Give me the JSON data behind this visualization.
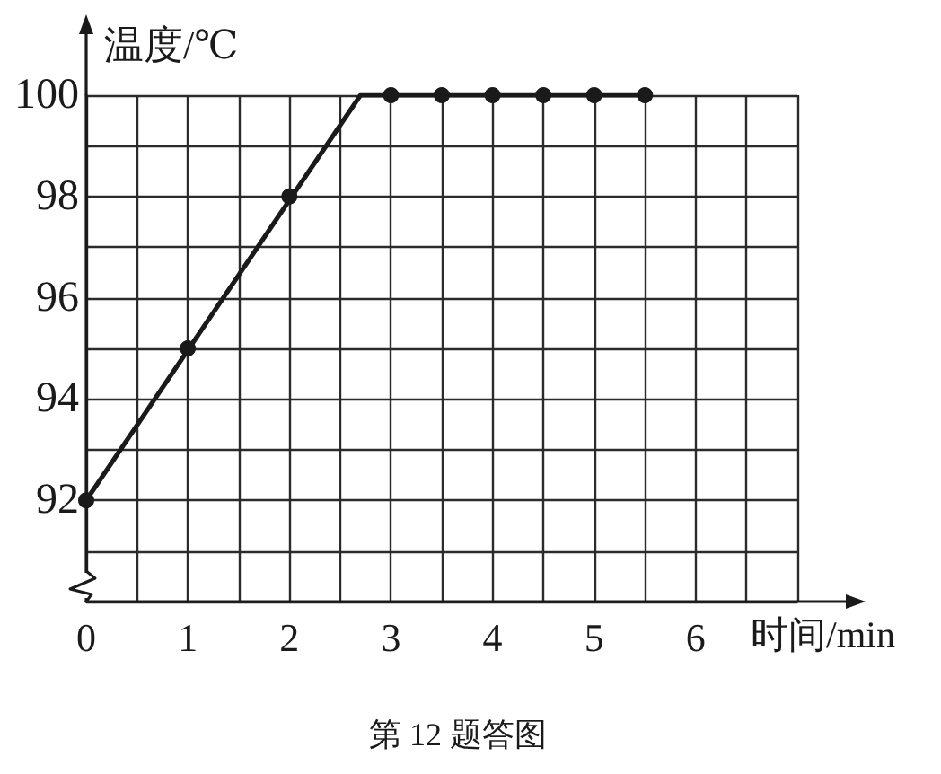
{
  "chart_data": {
    "type": "line",
    "xlabel": "时间/min",
    "ylabel": "温度/℃",
    "annotations": [
      "第 12 题答图"
    ],
    "xlim": [
      0,
      7
    ],
    "xticks": [
      0,
      {
        "value": 0.5,
        "label": null
      },
      1,
      {
        "value": 1.5,
        "label": null
      },
      2,
      {
        "value": 2.5,
        "label": null
      },
      3,
      {
        "value": 3.5,
        "label": null
      },
      4,
      {
        "value": 4.5,
        "label": null
      },
      5,
      {
        "value": 5.5,
        "label": null
      },
      6,
      {
        "value": 6.5,
        "label": null
      },
      {
        "value": 7,
        "label": null
      }
    ],
    "ylim": [
      90,
      100
    ],
    "yticks": [
      {
        "value": 90,
        "label": null
      },
      {
        "value": 91,
        "label": null
      },
      92,
      {
        "value": 93,
        "label": null
      },
      94,
      {
        "value": 95,
        "label": null
      },
      96,
      {
        "value": 97,
        "label": null
      },
      98,
      {
        "value": 99,
        "label": null
      },
      100
    ],
    "grid": true,
    "marker": "circle",
    "line_style": "solid",
    "series": [
      {
        "color": "#1a1a1a",
        "marker": "none",
        "x": [
          0,
          2.7,
          5.5
        ],
        "values": [
          92,
          100,
          100
        ]
      },
      {
        "type": "scatter",
        "color": "#1a1a1a",
        "x": [
          0,
          1,
          2,
          3,
          3.5,
          4,
          4.5,
          5,
          5.5
        ],
        "values": [
          92,
          95,
          98,
          100,
          100,
          100,
          100,
          100,
          100
        ]
      }
    ]
  }
}
